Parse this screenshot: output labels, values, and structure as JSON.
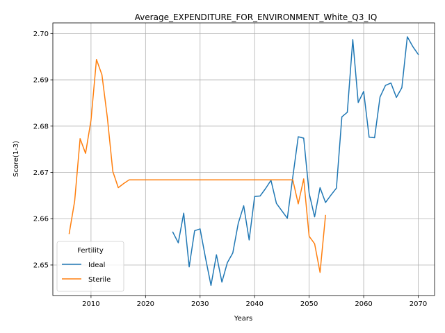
{
  "chart_data": {
    "type": "line",
    "title": "Average_EXPENDITURE_FOR_ENVIRONMENT_White_Q3_IQ",
    "xlabel": "Years",
    "ylabel": "Score(1-3)",
    "xlim": [
      2003,
      2073
    ],
    "ylim": [
      2.6434,
      2.7023
    ],
    "xticks": [
      2010,
      2020,
      2030,
      2040,
      2050,
      2060,
      2070
    ],
    "yticks": [
      2.65,
      2.66,
      2.67,
      2.68,
      2.69,
      2.7
    ],
    "ytick_labels": [
      "2.65",
      "2.66",
      "2.67",
      "2.68",
      "2.69",
      "2.70"
    ],
    "grid": true,
    "legend": {
      "title": "Fertility",
      "placement": "lower-left"
    },
    "series": [
      {
        "name": "Ideal",
        "color": "#1f77b4",
        "points": [
          [
            2025,
            2.6571
          ],
          [
            2026,
            2.6548
          ],
          [
            2027,
            2.6612
          ],
          [
            2028,
            2.6496
          ],
          [
            2029,
            2.6574
          ],
          [
            2030,
            2.6578
          ],
          [
            2031,
            2.6515
          ],
          [
            2032,
            2.6456
          ],
          [
            2033,
            2.6522
          ],
          [
            2034,
            2.6463
          ],
          [
            2035,
            2.6505
          ],
          [
            2036,
            2.6526
          ],
          [
            2037,
            2.659
          ],
          [
            2038,
            2.6628
          ],
          [
            2039,
            2.6554
          ],
          [
            2040,
            2.6648
          ],
          [
            2041,
            2.6649
          ],
          [
            2042,
            2.6665
          ],
          [
            2043,
            2.6683
          ],
          [
            2044,
            2.6633
          ],
          [
            2045,
            2.6617
          ],
          [
            2046,
            2.6601
          ],
          [
            2047,
            2.669
          ],
          [
            2048,
            2.6777
          ],
          [
            2049,
            2.6774
          ],
          [
            2050,
            2.6655
          ],
          [
            2051,
            2.6604
          ],
          [
            2052,
            2.6667
          ],
          [
            2053,
            2.6635
          ],
          [
            2054,
            2.6651
          ],
          [
            2055,
            2.6666
          ],
          [
            2056,
            2.682
          ],
          [
            2057,
            2.683
          ],
          [
            2058,
            2.6987
          ],
          [
            2059,
            2.6851
          ],
          [
            2060,
            2.6875
          ],
          [
            2061,
            2.6776
          ],
          [
            2062,
            2.6775
          ],
          [
            2063,
            2.6863
          ],
          [
            2064,
            2.6888
          ],
          [
            2065,
            2.6893
          ],
          [
            2066,
            2.6862
          ],
          [
            2067,
            2.6883
          ],
          [
            2068,
            2.6993
          ],
          [
            2069,
            2.6972
          ],
          [
            2070,
            2.6955
          ]
        ]
      },
      {
        "name": "Sterile",
        "color": "#ff7f0e",
        "points": [
          [
            2006,
            2.6568
          ],
          [
            2007,
            2.6638
          ],
          [
            2008,
            2.6773
          ],
          [
            2009,
            2.6741
          ],
          [
            2010,
            2.6813
          ],
          [
            2011,
            2.6944
          ],
          [
            2012,
            2.6911
          ],
          [
            2013,
            2.6818
          ],
          [
            2014,
            2.6702
          ],
          [
            2015,
            2.6667
          ],
          [
            2016,
            2.6676
          ],
          [
            2017,
            2.6684
          ],
          [
            2018,
            2.6684
          ],
          [
            2020,
            2.6684
          ],
          [
            2025,
            2.6684
          ],
          [
            2030,
            2.6684
          ],
          [
            2035,
            2.6684
          ],
          [
            2040,
            2.6684
          ],
          [
            2045,
            2.6684
          ],
          [
            2047,
            2.6684
          ],
          [
            2048,
            2.6632
          ],
          [
            2049,
            2.6686
          ],
          [
            2050,
            2.6562
          ],
          [
            2051,
            2.6546
          ],
          [
            2052,
            2.6484
          ],
          [
            2053,
            2.6607
          ]
        ]
      }
    ]
  }
}
